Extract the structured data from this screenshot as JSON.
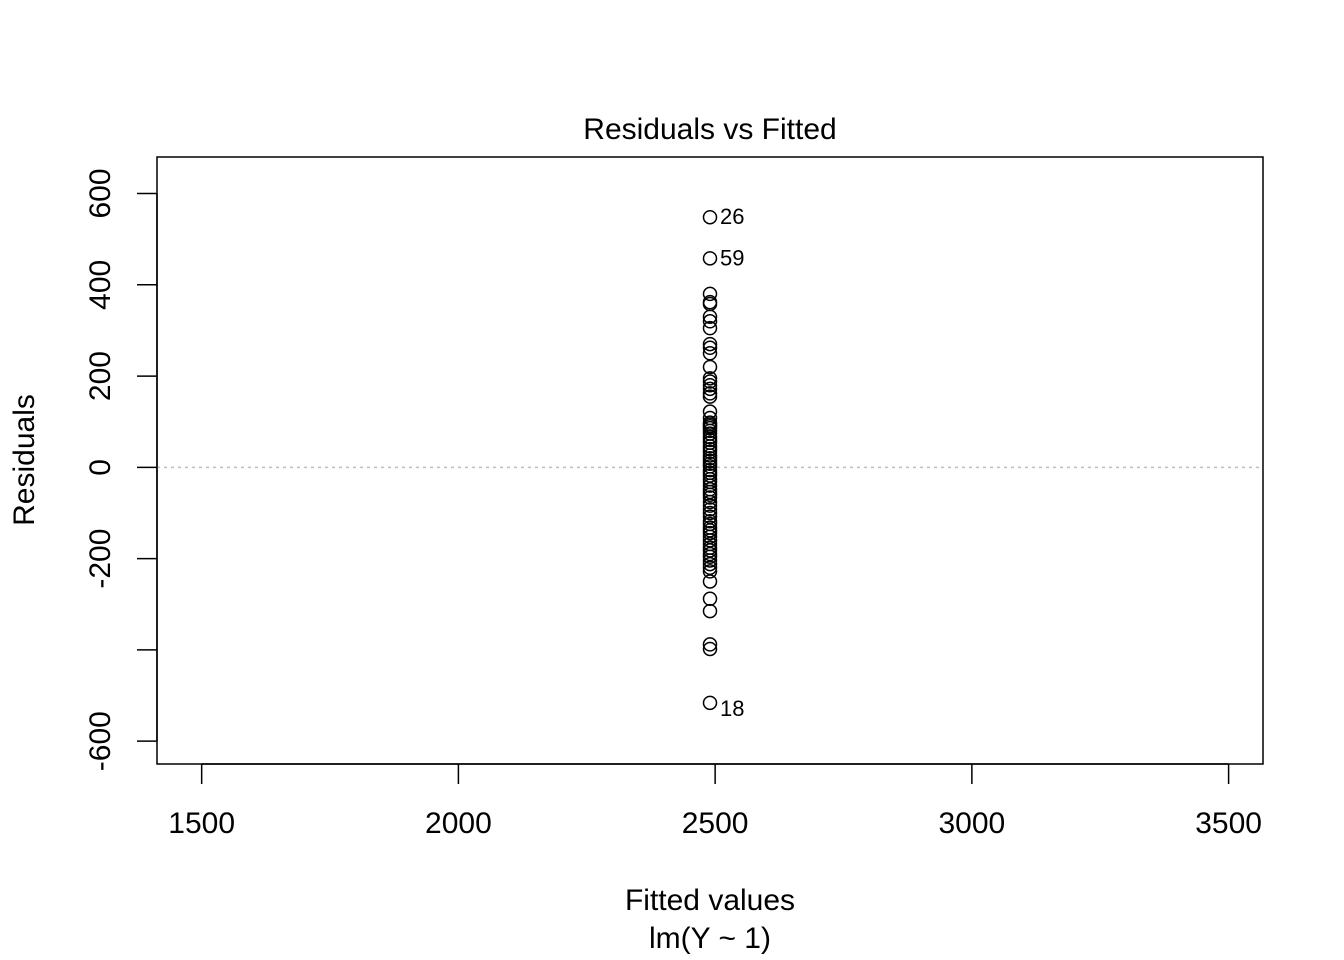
{
  "chart_data": {
    "type": "scatter",
    "title": "Residuals vs Fitted",
    "xlabel": "Fitted values",
    "sublabel": "lm(Y ~ 1)",
    "ylabel": "Residuals",
    "xlim": [
      1413,
      3567
    ],
    "ylim": [
      -650,
      680
    ],
    "x_ticks": [
      1500,
      2000,
      2500,
      3000,
      3500
    ],
    "x_tick_labels": [
      "1500",
      "2000",
      "2500",
      "3000",
      "3500"
    ],
    "y_ticks": [
      -600,
      -400,
      -200,
      0,
      200,
      400,
      600
    ],
    "y_tick_labels": [
      "-600",
      "",
      "-200",
      "0",
      "200",
      "400",
      "600"
    ],
    "reference_line": 0,
    "reference_line_color": "#bebebe",
    "fitted_value": 2490,
    "residuals": [
      548,
      458,
      380,
      362,
      358,
      330,
      320,
      305,
      270,
      262,
      250,
      220,
      195,
      188,
      180,
      172,
      162,
      155,
      122,
      108,
      98,
      94,
      90,
      86,
      80,
      74,
      66,
      60,
      54,
      46,
      40,
      34,
      26,
      20,
      14,
      8,
      2,
      -6,
      -12,
      -18,
      -26,
      -32,
      -40,
      -48,
      -54,
      -60,
      -66,
      -76,
      -84,
      -92,
      -100,
      -108,
      -118,
      -124,
      -132,
      -138,
      -144,
      -152,
      -160,
      -168,
      -176,
      -182,
      -190,
      -196,
      -204,
      -212,
      -220,
      -228,
      -250,
      -288,
      -315,
      -388,
      -398,
      -516
    ],
    "labeled_points": [
      {
        "label": "26",
        "y": 548
      },
      {
        "label": "59",
        "y": 458
      },
      {
        "label": "18",
        "y": -516
      }
    ],
    "grid": false,
    "legend": "none"
  }
}
